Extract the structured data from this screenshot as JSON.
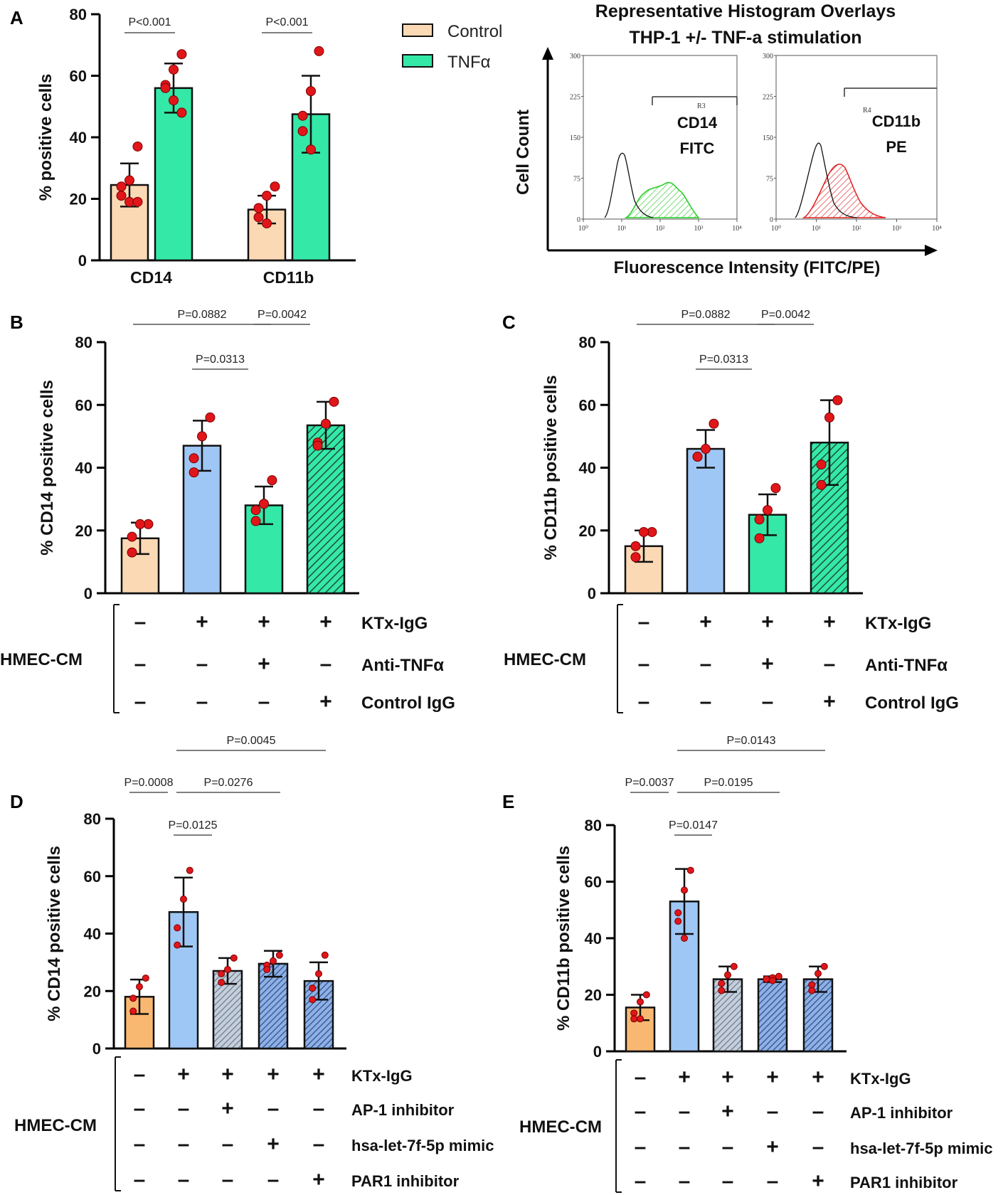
{
  "colors": {
    "control": "#fbd9b4",
    "tnf": "#34e8a8",
    "ktx": "#9fc7f5",
    "ap1": "#a9b7c9",
    "mimic": "#7d9fd6",
    "par1": "#7d9fd6",
    "dot": "#e0161a",
    "control_dark": "#f6b46e"
  },
  "chart_data": [
    {
      "panel": "A",
      "type": "bar",
      "ylabel": "% positive cells",
      "ylim": [
        0,
        80
      ],
      "yticks": [
        "0",
        "20",
        "40",
        "60",
        "80"
      ],
      "categories": [
        "CD14",
        "CD11b"
      ],
      "series": [
        {
          "name": "Control",
          "values": [
            24.5,
            16.5
          ],
          "sd": [
            7,
            4.5
          ],
          "points": [
            [
              37,
              26,
              24,
              21,
              19,
              19
            ],
            [
              24,
              21,
              17,
              14,
              12
            ]
          ]
        },
        {
          "name": "TNFα",
          "values": [
            56,
            47.5
          ],
          "sd": [
            8,
            12.5
          ],
          "points": [
            [
              67,
              62,
              57,
              56,
              52,
              48
            ],
            [
              68,
              55,
              47,
              42,
              36
            ]
          ]
        }
      ],
      "legend": [
        "Control",
        "TNFα"
      ],
      "comparisons": [
        {
          "label": "P<0.001",
          "group": 0
        },
        {
          "label": "P<0.001",
          "group": 1
        }
      ]
    },
    {
      "panel": "B",
      "type": "bar",
      "ylabel": "% CD14 positive cells",
      "ylim": [
        0,
        80
      ],
      "yticks": [
        "0",
        "20",
        "40",
        "60",
        "80"
      ],
      "values": [
        17.5,
        47,
        28,
        53.5
      ],
      "sd": [
        5,
        8,
        6,
        7.5
      ],
      "points": [
        [
          22,
          22,
          18,
          13
        ],
        [
          56,
          50,
          43,
          38.5
        ],
        [
          36,
          28.5,
          26.5,
          23
        ],
        [
          61,
          54,
          48,
          47
        ]
      ],
      "comparisons": [
        {
          "label": "P=0.0882",
          "from": 0,
          "to": 2
        },
        {
          "label": "P=0.0042",
          "from": 2,
          "to": 3
        },
        {
          "label": "P=0.0313",
          "from": 1,
          "to": 2
        }
      ],
      "conditions": [
        {
          "name": "KTx-IgG",
          "marks": [
            "–",
            "+",
            "+",
            "+"
          ]
        },
        {
          "name": "Anti-TNFα",
          "marks": [
            "–",
            "–",
            "+",
            "–"
          ]
        },
        {
          "name": "Control IgG",
          "marks": [
            "–",
            "–",
            "–",
            "+"
          ]
        }
      ],
      "group_label": "HMEC-CM"
    },
    {
      "panel": "C",
      "type": "bar",
      "ylabel": "% CD11b positive cells",
      "ylim": [
        0,
        80
      ],
      "yticks": [
        "0",
        "20",
        "40",
        "60",
        "80"
      ],
      "values": [
        15,
        46,
        25,
        48
      ],
      "sd": [
        5,
        6,
        6.5,
        13.5
      ],
      "points": [
        [
          19.5,
          19.5,
          15,
          11.5
        ],
        [
          54,
          46,
          43.5,
          43.5
        ],
        [
          33.5,
          26.5,
          23.5,
          17.5
        ],
        [
          61.5,
          56,
          41,
          34.5
        ]
      ],
      "comparisons": [
        {
          "label": "P=0.0882",
          "from": 0,
          "to": 2
        },
        {
          "label": "P=0.0042",
          "from": 2,
          "to": 3
        },
        {
          "label": "P=0.0313",
          "from": 1,
          "to": 2
        }
      ],
      "conditions": [
        {
          "name": "KTx-IgG",
          "marks": [
            "–",
            "+",
            "+",
            "+"
          ]
        },
        {
          "name": "Anti-TNFα",
          "marks": [
            "–",
            "–",
            "+",
            "–"
          ]
        },
        {
          "name": "Control IgG",
          "marks": [
            "–",
            "–",
            "–",
            "+"
          ]
        }
      ],
      "group_label": "HMEC-CM"
    },
    {
      "panel": "D",
      "type": "bar",
      "ylabel": "% CD14 positive cells",
      "ylim": [
        0,
        80
      ],
      "yticks": [
        "0",
        "20",
        "40",
        "60",
        "80"
      ],
      "values": [
        18,
        47.5,
        27,
        29.5,
        23.5
      ],
      "sd": [
        6,
        12,
        4.5,
        4.5,
        6.5
      ],
      "points": [
        [
          24.5,
          21.5,
          17.5,
          13
        ],
        [
          62,
          52,
          42,
          36
        ],
        [
          31.5,
          27.5,
          26,
          23
        ],
        [
          32.5,
          30.5,
          29,
          27.5
        ],
        [
          32.5,
          26,
          21,
          17
        ]
      ],
      "comparisons": [
        {
          "label": "P=0.0008",
          "from": 0,
          "to": 1
        },
        {
          "label": "P=0.0276",
          "from": 1,
          "to": 3
        },
        {
          "label": "P=0.0125",
          "from": 1,
          "to": 2
        },
        {
          "label": "P=0.0045",
          "from": 1,
          "to": 4
        }
      ],
      "conditions": [
        {
          "name": "KTx-IgG",
          "marks": [
            "–",
            "+",
            "+",
            "+",
            "+"
          ]
        },
        {
          "name": "AP-1 inhibitor",
          "marks": [
            "–",
            "–",
            "+",
            "–",
            "–"
          ]
        },
        {
          "name": "hsa-let-7f-5p mimic",
          "marks": [
            "–",
            "–",
            "–",
            "+",
            "–"
          ]
        },
        {
          "name": "PAR1 inhibitor",
          "marks": [
            "–",
            "–",
            "–",
            "–",
            "+"
          ]
        }
      ],
      "group_label": "HMEC-CM"
    },
    {
      "panel": "E",
      "type": "bar",
      "ylabel": "% CD11b positive cells",
      "ylim": [
        0,
        80
      ],
      "yticks": [
        "0",
        "20",
        "40",
        "60",
        "80"
      ],
      "values": [
        15.5,
        53,
        25.5,
        25.5,
        25.5
      ],
      "sd": [
        4.5,
        11.5,
        4.5,
        1,
        4.5
      ],
      "points": [
        [
          20,
          17.5,
          13.5,
          11.5,
          11.5
        ],
        [
          64,
          57,
          49,
          46,
          40
        ],
        [
          30,
          27,
          24,
          21.5
        ],
        [
          26.5,
          26,
          25.5,
          25.5,
          25
        ],
        [
          30,
          27.5,
          23.5,
          21.5
        ]
      ],
      "comparisons": [
        {
          "label": "P=0.0037",
          "from": 0,
          "to": 1
        },
        {
          "label": "P=0.0195",
          "from": 1,
          "to": 3
        },
        {
          "label": "P=0.0147",
          "from": 1,
          "to": 2
        },
        {
          "label": "P=0.0143",
          "from": 1,
          "to": 4
        }
      ],
      "conditions": [
        {
          "name": "KTx-IgG",
          "marks": [
            "–",
            "+",
            "+",
            "+",
            "+"
          ]
        },
        {
          "name": "AP-1 inhibitor",
          "marks": [
            "–",
            "–",
            "+",
            "–",
            "–"
          ]
        },
        {
          "name": "hsa-let-7f-5p mimic",
          "marks": [
            "–",
            "–",
            "–",
            "+",
            "–"
          ]
        },
        {
          "name": "PAR1 inhibitor",
          "marks": [
            "–",
            "–",
            "–",
            "–",
            "+"
          ]
        }
      ],
      "group_label": "HMEC-CM"
    }
  ],
  "histogram": {
    "title_line1": "Representative Histogram Overlays",
    "title_line2": "THP-1 +/- TNF-a stimulation",
    "ylabel": "Cell Count",
    "xlabel": "Fluorescence Intensity (FITC/PE)",
    "yticks": [
      "0",
      "75",
      "150",
      "225",
      "300"
    ],
    "xticks": [
      "10⁰",
      "10¹",
      "10²",
      "10³",
      "10⁴"
    ],
    "left": {
      "gate": "R3",
      "marker": "CD14",
      "channel": "FITC",
      "color": "#22cc22"
    },
    "right": {
      "gate": "R4",
      "marker": "CD11b",
      "channel": "PE",
      "color": "#e02020"
    }
  }
}
